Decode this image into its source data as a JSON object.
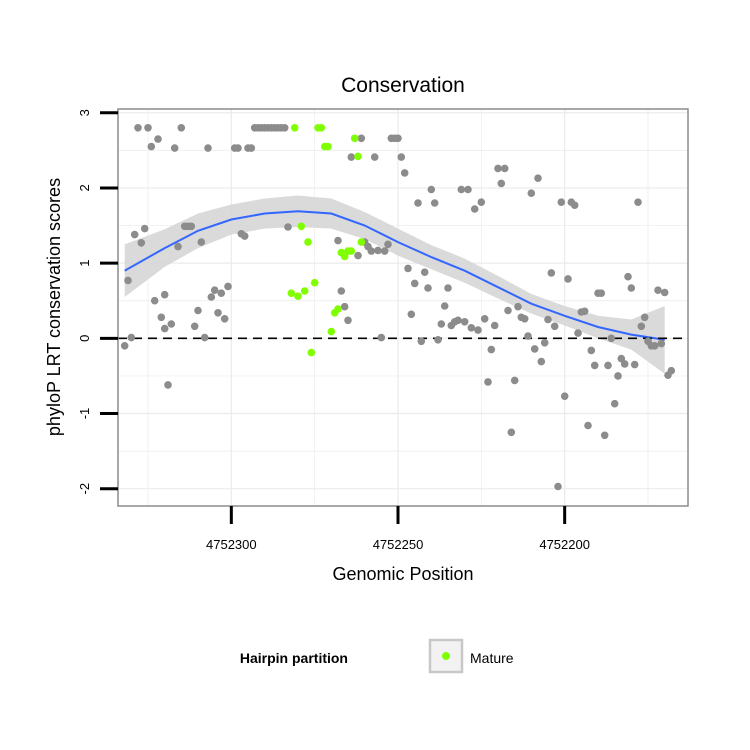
{
  "chart_data": {
    "type": "scatter",
    "title": "Conservation",
    "xlabel": "Genomic Position",
    "ylabel": "phyloP LRT conservation scores",
    "x_reversed": true,
    "xlim": [
      4752334,
      4752163
    ],
    "ylim": [
      -2.23,
      3.05
    ],
    "x_ticks": [
      4752300,
      4752250,
      4752200
    ],
    "x_tick_labels": [
      "4752300",
      "4752250",
      "4752200"
    ],
    "y_ticks": [
      -2,
      -1,
      0,
      1,
      2,
      3
    ],
    "y_tick_labels": [
      "-2",
      "-1",
      "0",
      "1",
      "2",
      "3"
    ],
    "reference_line": {
      "y": 0,
      "style": "dashed"
    },
    "grid": true,
    "colors": {
      "background_points": "#8c8c8c",
      "mature": "#80ff00",
      "smooth_line": "#3366ff",
      "ribbon": "#d6d6d6",
      "grid": "#ebebeb",
      "panel_border": "#8c8c8c"
    },
    "legend": {
      "title": "Hairpin partition",
      "position": "bottom",
      "entries": [
        {
          "label": "Mature",
          "color": "#80ff00"
        }
      ]
    },
    "series": [
      {
        "group": "other",
        "points": [
          [
            4752332,
            -0.1
          ],
          [
            4752331,
            0.77
          ],
          [
            4752330,
            0.01
          ],
          [
            4752329,
            1.38
          ],
          [
            4752328,
            2.8
          ],
          [
            4752327,
            1.27
          ],
          [
            4752326,
            1.46
          ],
          [
            4752325,
            2.8
          ],
          [
            4752324,
            2.55
          ],
          [
            4752323,
            0.5
          ],
          [
            4752322,
            2.65
          ],
          [
            4752321,
            0.28
          ],
          [
            4752320,
            0.13
          ],
          [
            4752320,
            0.58
          ],
          [
            4752319,
            -0.62
          ],
          [
            4752318,
            0.19
          ],
          [
            4752317,
            2.53
          ],
          [
            4752316,
            1.22
          ],
          [
            4752315,
            2.8
          ],
          [
            4752314,
            1.49
          ],
          [
            4752313,
            1.49
          ],
          [
            4752312,
            1.49
          ],
          [
            4752311,
            0.16
          ],
          [
            4752310,
            0.37
          ],
          [
            4752309,
            1.28
          ],
          [
            4752308,
            0.01
          ],
          [
            4752307,
            2.53
          ],
          [
            4752306,
            0.55
          ],
          [
            4752305,
            0.64
          ],
          [
            4752304,
            0.34
          ],
          [
            4752303,
            0.6
          ],
          [
            4752302,
            0.26
          ],
          [
            4752301,
            0.69
          ],
          [
            4752299,
            2.53
          ],
          [
            4752298,
            2.53
          ],
          [
            4752297,
            1.39
          ],
          [
            4752296,
            1.36
          ],
          [
            4752295,
            2.53
          ],
          [
            4752294,
            2.53
          ],
          [
            4752293,
            2.8
          ],
          [
            4752292,
            2.8
          ],
          [
            4752291,
            2.8
          ],
          [
            4752290,
            2.8
          ],
          [
            4752289,
            2.8
          ],
          [
            4752288,
            2.8
          ],
          [
            4752287,
            2.8
          ],
          [
            4752286,
            2.8
          ],
          [
            4752285,
            2.8
          ],
          [
            4752284,
            2.8
          ],
          [
            4752283,
            1.48
          ],
          [
            4752268,
            1.3
          ],
          [
            4752267,
            0.63
          ],
          [
            4752266,
            0.42
          ],
          [
            4752265,
            0.24
          ],
          [
            4752264,
            2.41
          ],
          [
            4752262,
            1.1
          ],
          [
            4752261,
            2.66
          ],
          [
            4752260,
            1.28
          ],
          [
            4752259,
            1.22
          ],
          [
            4752258,
            1.16
          ],
          [
            4752257,
            2.41
          ],
          [
            4752256,
            1.17
          ],
          [
            4752255,
            0.01
          ],
          [
            4752254,
            1.16
          ],
          [
            4752253,
            1.25
          ],
          [
            4752252,
            2.66
          ],
          [
            4752251,
            2.66
          ],
          [
            4752250,
            2.66
          ],
          [
            4752249,
            2.41
          ],
          [
            4752248,
            2.2
          ],
          [
            4752247,
            0.93
          ],
          [
            4752246,
            0.32
          ],
          [
            4752245,
            0.73
          ],
          [
            4752244,
            1.8
          ],
          [
            4752243,
            -0.04
          ],
          [
            4752242,
            0.88
          ],
          [
            4752241,
            0.67
          ],
          [
            4752240,
            1.98
          ],
          [
            4752239,
            1.8
          ],
          [
            4752238,
            -0.02
          ],
          [
            4752237,
            0.19
          ],
          [
            4752236,
            0.43
          ],
          [
            4752235,
            0.67
          ],
          [
            4752234,
            0.17
          ],
          [
            4752233,
            0.22
          ],
          [
            4752232,
            0.24
          ],
          [
            4752231,
            1.98
          ],
          [
            4752230,
            0.22
          ],
          [
            4752229,
            1.98
          ],
          [
            4752228,
            0.14
          ],
          [
            4752227,
            1.72
          ],
          [
            4752226,
            0.11
          ],
          [
            4752225,
            1.81
          ],
          [
            4752224,
            0.26
          ],
          [
            4752223,
            -0.58
          ],
          [
            4752222,
            -0.15
          ],
          [
            4752221,
            0.17
          ],
          [
            4752220,
            2.26
          ],
          [
            4752219,
            2.06
          ],
          [
            4752218,
            2.26
          ],
          [
            4752217,
            0.37
          ],
          [
            4752216,
            -1.25
          ],
          [
            4752215,
            -0.56
          ],
          [
            4752214,
            0.42
          ],
          [
            4752213,
            0.28
          ],
          [
            4752212,
            0.26
          ],
          [
            4752211,
            0.03
          ],
          [
            4752210,
            1.93
          ],
          [
            4752209,
            -0.14
          ],
          [
            4752208,
            2.13
          ],
          [
            4752207,
            -0.31
          ],
          [
            4752206,
            -0.06
          ],
          [
            4752205,
            0.25
          ],
          [
            4752204,
            0.87
          ],
          [
            4752203,
            0.16
          ],
          [
            4752202,
            -1.97
          ],
          [
            4752201,
            1.81
          ],
          [
            4752200,
            -0.77
          ],
          [
            4752199,
            0.79
          ],
          [
            4752198,
            1.81
          ],
          [
            4752197,
            1.77
          ],
          [
            4752196,
            0.07
          ],
          [
            4752195,
            0.35
          ],
          [
            4752194,
            0.36
          ],
          [
            4752193,
            -1.16
          ],
          [
            4752192,
            -0.16
          ],
          [
            4752191,
            -0.36
          ],
          [
            4752190,
            0.6
          ],
          [
            4752189,
            0.6
          ],
          [
            4752188,
            -1.29
          ],
          [
            4752187,
            -0.36
          ],
          [
            4752186,
            0.0
          ],
          [
            4752185,
            -0.87
          ],
          [
            4752184,
            -0.5
          ],
          [
            4752183,
            -0.27
          ],
          [
            4752182,
            -0.34
          ],
          [
            4752181,
            0.82
          ],
          [
            4752180,
            0.67
          ],
          [
            4752179,
            -0.35
          ],
          [
            4752178,
            1.81
          ],
          [
            4752177,
            0.16
          ],
          [
            4752176,
            0.28
          ],
          [
            4752175,
            -0.04
          ],
          [
            4752174,
            -0.1
          ],
          [
            4752173,
            -0.1
          ],
          [
            4752172,
            0.64
          ],
          [
            4752171,
            -0.07
          ],
          [
            4752170,
            0.61
          ],
          [
            4752169,
            -0.49
          ],
          [
            4752168,
            -0.43
          ]
        ]
      },
      {
        "group": "mature",
        "name": "Mature",
        "points": [
          [
            4752282,
            0.6
          ],
          [
            4752281,
            2.8
          ],
          [
            4752280,
            0.56
          ],
          [
            4752279,
            1.49
          ],
          [
            4752278,
            0.63
          ],
          [
            4752277,
            1.28
          ],
          [
            4752276,
            -0.19
          ],
          [
            4752275,
            0.74
          ],
          [
            4752274,
            2.8
          ],
          [
            4752273,
            2.8
          ],
          [
            4752272,
            2.55
          ],
          [
            4752271,
            2.55
          ],
          [
            4752270,
            0.09
          ],
          [
            4752269,
            0.34
          ],
          [
            4752268,
            0.39
          ],
          [
            4752267,
            1.14
          ],
          [
            4752266,
            1.09
          ],
          [
            4752265,
            1.16
          ],
          [
            4752264,
            1.16
          ],
          [
            4752263,
            2.66
          ],
          [
            4752262,
            2.42
          ],
          [
            4752261,
            1.28
          ]
        ]
      }
    ],
    "smooth": {
      "x": [
        4752332,
        4752320,
        4752310,
        4752300,
        4752290,
        4752280,
        4752270,
        4752260,
        4752250,
        4752240,
        4752230,
        4752220,
        4752210,
        4752200,
        4752190,
        4752180,
        4752170
      ],
      "y": [
        0.9,
        1.2,
        1.43,
        1.58,
        1.66,
        1.69,
        1.66,
        1.5,
        1.28,
        1.08,
        0.9,
        0.68,
        0.46,
        0.3,
        0.15,
        0.05,
        -0.02
      ],
      "lower": [
        0.55,
        0.95,
        1.2,
        1.38,
        1.46,
        1.48,
        1.46,
        1.32,
        1.1,
        0.92,
        0.74,
        0.53,
        0.33,
        0.17,
        0.0,
        -0.15,
        -0.47
      ],
      "upper": [
        1.25,
        1.45,
        1.66,
        1.78,
        1.86,
        1.9,
        1.86,
        1.68,
        1.46,
        1.24,
        1.06,
        0.83,
        0.59,
        0.43,
        0.3,
        0.25,
        0.43
      ]
    }
  }
}
